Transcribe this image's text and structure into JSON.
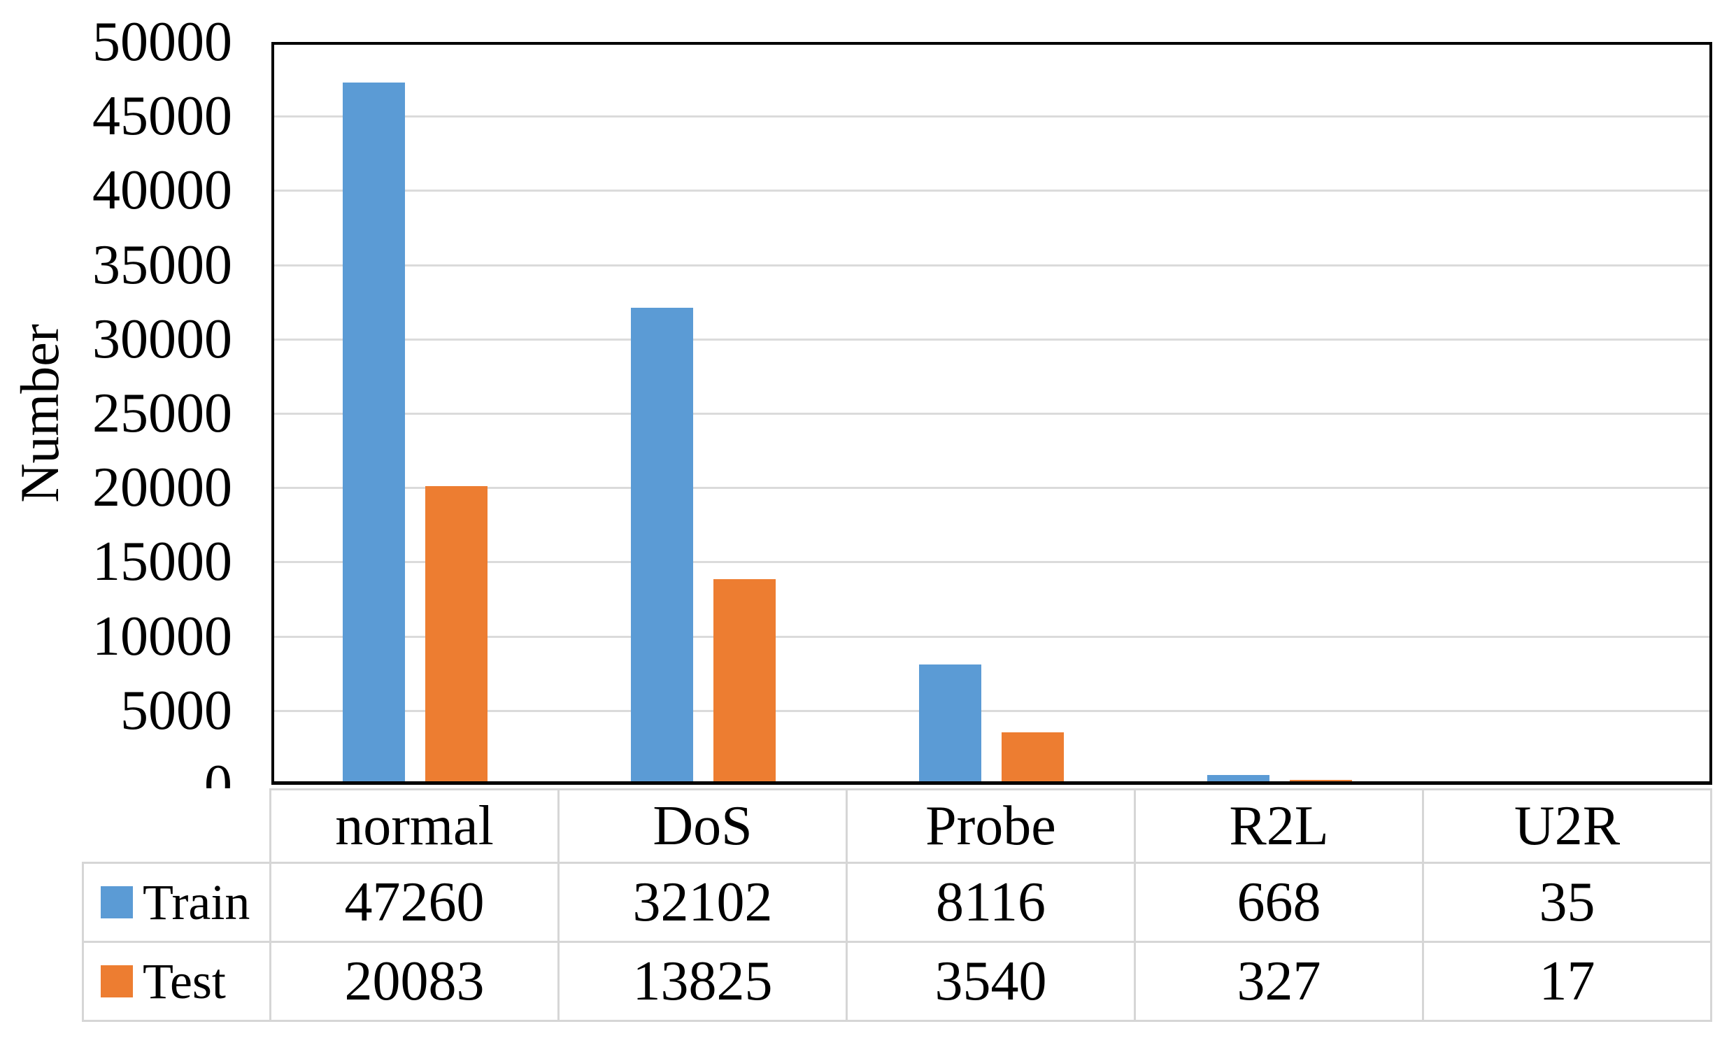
{
  "figure": {
    "background_color": "#FFFFFF",
    "text_color": "#000000"
  },
  "chart_data": {
    "type": "bar",
    "title": "",
    "xlabel": "",
    "ylabel": "Number",
    "categories": [
      "normal",
      "DoS",
      "Probe",
      "R2L",
      "U2R"
    ],
    "series": [
      {
        "name": "Train",
        "color": "#5B9BD5",
        "values": [
          47260,
          32102,
          8116,
          668,
          35
        ]
      },
      {
        "name": "Test",
        "color": "#ED7D31",
        "values": [
          20083,
          13825,
          3540,
          327,
          17
        ]
      }
    ],
    "ylim": [
      0,
      50000
    ],
    "ytick_step": 5000,
    "ytick_labels": [
      "0",
      "5000",
      "10000",
      "15000",
      "20000",
      "25000",
      "30000",
      "35000",
      "40000",
      "45000",
      "50000"
    ],
    "grid": true,
    "gridline_color": "#DBDBDB",
    "axis_color": "#000000",
    "plot_border_color": "#000000",
    "table_border_color": "#D6D6D6",
    "legend_position": "table-left-column",
    "data_table_shown": true
  }
}
